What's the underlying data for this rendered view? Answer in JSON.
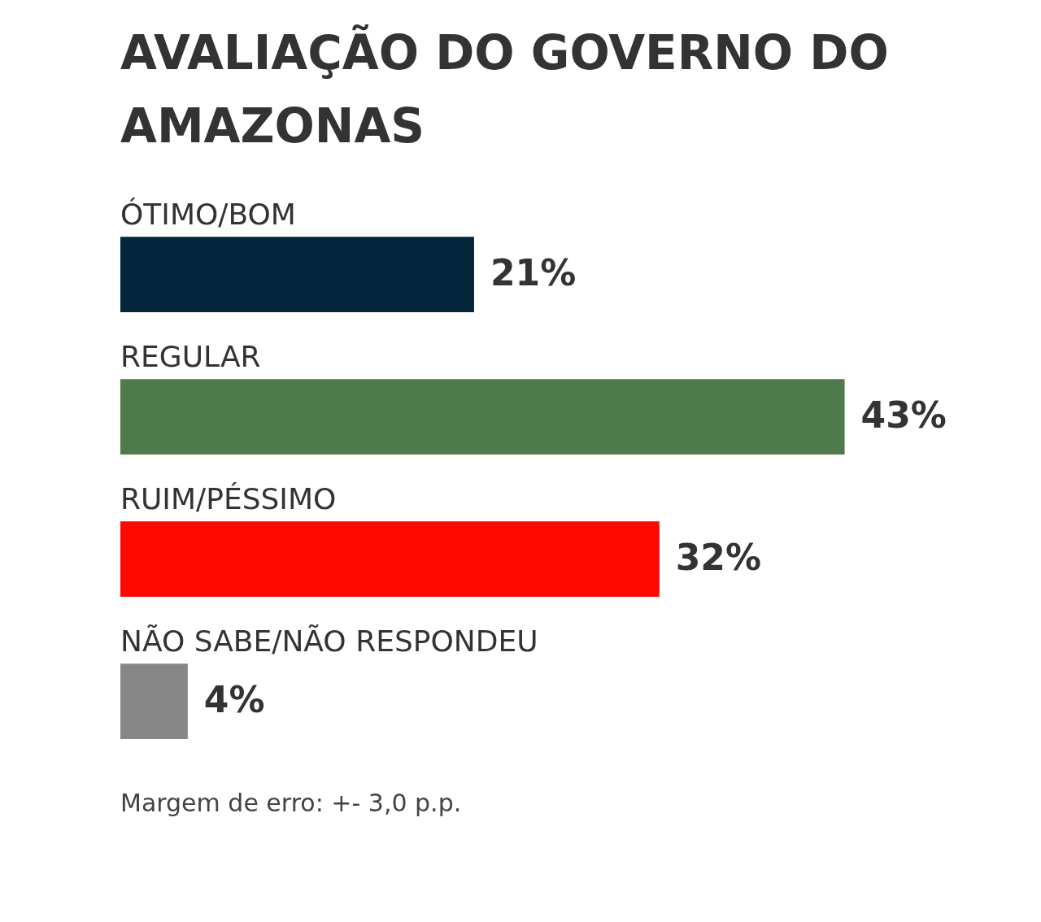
{
  "chart_data": {
    "type": "bar",
    "orientation": "horizontal",
    "title": "AVALIAÇÃO DO GOVERNO DO AMAZONAS",
    "categories": [
      "ÓTIMO/BOM",
      "REGULAR",
      "RUIM/PÉSSIMO",
      "NÃO SABE/NÃO RESPONDEU"
    ],
    "values": [
      21,
      43,
      32,
      4
    ],
    "colors": [
      "#03263b",
      "#4f7a4b",
      "#ff0800",
      "#878787"
    ],
    "value_labels": [
      "21%",
      "43%",
      "32%",
      "4%"
    ],
    "annotations": [
      "Margem de erro: +- 3,0 p.p."
    ]
  }
}
